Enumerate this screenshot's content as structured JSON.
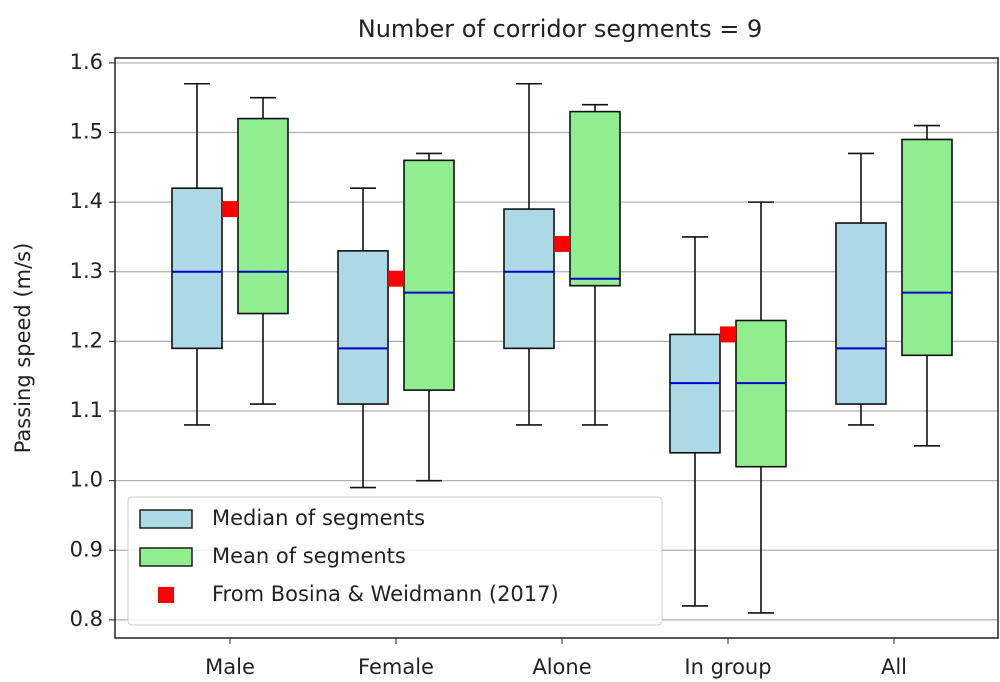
{
  "chart_data": {
    "type": "box",
    "title": "Number of corridor segments = 9",
    "ylabel": "Passing speed (m/s)",
    "categories": [
      "Male",
      "Female",
      "Alone",
      "In group",
      "All"
    ],
    "ylim": [
      0.774,
      1.607
    ],
    "yticks": [
      0.8,
      0.9,
      {
        "value": 1,
        "label": "1.0"
      },
      1.1,
      1.2,
      1.3,
      1.4,
      1.5,
      1.6
    ],
    "grid": true,
    "legend": "lower left",
    "series": [
      {
        "name": "Median of segments",
        "color": "#add8e6",
        "min": [
          1.08,
          0.99,
          1.08,
          0.82,
          1.08
        ],
        "q1": [
          1.19,
          1.11,
          1.19,
          1.04,
          1.11
        ],
        "median": [
          1.3,
          1.19,
          1.3,
          1.14,
          1.19
        ],
        "q3": [
          1.42,
          1.33,
          1.39,
          1.21,
          1.37
        ],
        "max": [
          1.57,
          1.42,
          1.57,
          1.35,
          1.47
        ]
      },
      {
        "name": "Mean of segments",
        "color": "#90ee90",
        "min": [
          1.11,
          1.0,
          1.08,
          0.81,
          1.05
        ],
        "q1": [
          1.24,
          1.13,
          1.28,
          1.02,
          1.18
        ],
        "median": [
          1.3,
          1.27,
          1.29,
          1.14,
          1.27
        ],
        "q3": [
          1.52,
          1.46,
          1.53,
          1.23,
          1.49
        ],
        "max": [
          1.55,
          1.47,
          1.54,
          1.4,
          1.51
        ]
      }
    ],
    "reference": {
      "name": "From Bosina & Weidmann (2017)",
      "color": "#ff0000",
      "values": [
        1.39,
        1.29,
        1.34,
        1.21,
        null
      ]
    },
    "median_color": "#0000cc"
  }
}
